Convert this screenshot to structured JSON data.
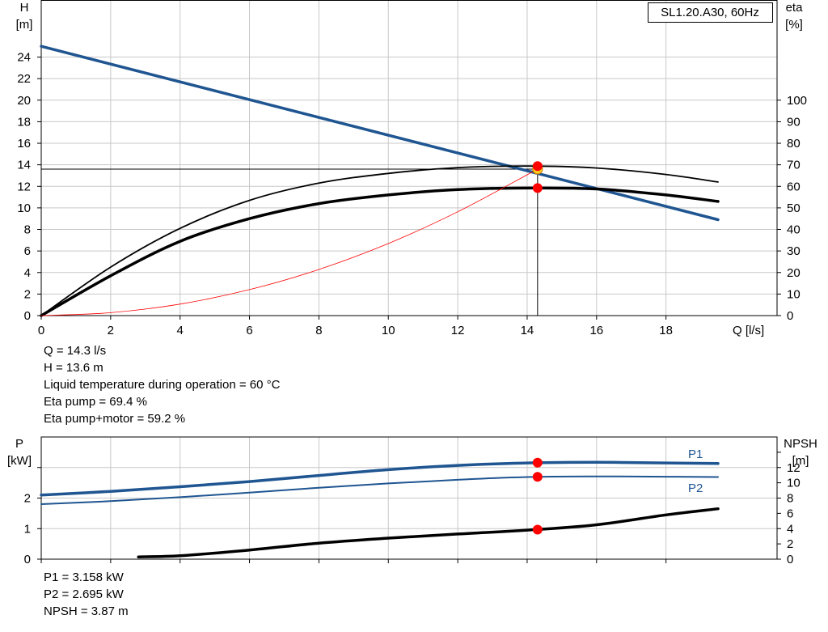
{
  "chart_data": [
    {
      "type": "line",
      "title": "SL1.20.A30, 60Hz",
      "xlabel": "Q [l/s]",
      "ylabel_left": [
        "H",
        "[m]"
      ],
      "ylabel_right": [
        "eta",
        "[%]"
      ],
      "xlim": [
        0,
        21.2
      ],
      "ylim_left": [
        0,
        29.3
      ],
      "ylim_right": [
        0,
        146.5
      ],
      "x_ticks": [
        0,
        2,
        4,
        6,
        8,
        10,
        12,
        14,
        16,
        18
      ],
      "y_ticks_left": [
        0,
        2,
        4,
        6,
        8,
        10,
        12,
        14,
        16,
        18,
        20,
        22,
        24
      ],
      "y_ticks_right": [
        0,
        10,
        20,
        30,
        40,
        50,
        60,
        70,
        80,
        90,
        100
      ],
      "grid": true,
      "series": [
        {
          "axis": "left",
          "color": "#1f5591",
          "width": 3.5,
          "x": [
            0,
            19.5
          ],
          "values": [
            25.0,
            8.9
          ]
        },
        {
          "axis": "right",
          "color": "#000000",
          "width": 1.8,
          "x": [
            0,
            2,
            4,
            6,
            8,
            10,
            12,
            14,
            16,
            18,
            19.5
          ],
          "values": [
            0,
            22.5,
            40.5,
            53.5,
            61.5,
            66.0,
            68.7,
            69.4,
            68.5,
            65.5,
            62.0
          ]
        },
        {
          "axis": "right",
          "color": "#000000",
          "width": 3.5,
          "x": [
            0,
            2,
            4,
            6,
            8,
            10,
            12,
            14,
            16,
            18,
            19.5
          ],
          "values": [
            0,
            18.5,
            34.5,
            45.0,
            52.0,
            56.0,
            58.5,
            59.2,
            58.8,
            56.0,
            53.0
          ]
        },
        {
          "axis": "left",
          "color": "#ff0000",
          "width": 0.8,
          "x": [
            0,
            2,
            4,
            6,
            8,
            10,
            12,
            14.3
          ],
          "values": [
            0,
            0.27,
            1.07,
            2.41,
            4.28,
            6.69,
            9.64,
            13.6
          ]
        }
      ],
      "operating_point": {
        "x": 14.3,
        "h": 13.6,
        "eta_pump": 69.4,
        "eta_total": 59.2
      },
      "markers": [
        {
          "axis": "left",
          "x": 14.3,
          "y": 13.6,
          "color": "#ffd21f"
        },
        {
          "axis": "right",
          "x": 14.3,
          "y": 69.4,
          "color": "#ff0000"
        },
        {
          "axis": "right",
          "x": 14.3,
          "y": 59.2,
          "color": "#ff0000"
        }
      ]
    },
    {
      "type": "line",
      "xlim": [
        0,
        21.2
      ],
      "ylabel_left": [
        "P",
        "[kW]"
      ],
      "ylabel_right": [
        "NPSH",
        "[m]"
      ],
      "ylim_left": [
        0,
        4
      ],
      "ylim_right": [
        0,
        16
      ],
      "y_ticks_left": [
        0,
        1,
        2
      ],
      "y_ticks_right": [
        0,
        2,
        4,
        6,
        8,
        10,
        12
      ],
      "grid": true,
      "series": [
        {
          "name": "P1",
          "axis": "left",
          "color": "#1f5591",
          "width": 3.5,
          "x": [
            0,
            2,
            4,
            6,
            8,
            10,
            12,
            14,
            16,
            18,
            19.5
          ],
          "values": [
            2.1,
            2.22,
            2.37,
            2.54,
            2.74,
            2.93,
            3.07,
            3.15,
            3.17,
            3.15,
            3.13
          ]
        },
        {
          "name": "P2",
          "axis": "left",
          "color": "#1f5591",
          "width": 2,
          "x": [
            0,
            2,
            4,
            6,
            8,
            10,
            12,
            14,
            16,
            18,
            19.5
          ],
          "values": [
            1.8,
            1.9,
            2.03,
            2.18,
            2.34,
            2.48,
            2.6,
            2.69,
            2.71,
            2.7,
            2.69
          ]
        },
        {
          "axis": "right",
          "color": "#000000",
          "width": 3.5,
          "x": [
            2.8,
            4,
            6,
            8,
            10,
            12,
            14,
            16,
            18,
            19.5
          ],
          "values": [
            0.3,
            0.45,
            1.2,
            2.1,
            2.75,
            3.3,
            3.8,
            4.5,
            5.8,
            6.6
          ]
        }
      ],
      "markers": [
        {
          "axis": "left",
          "x": 14.3,
          "y": 3.158,
          "color": "#ff0000"
        },
        {
          "axis": "left",
          "x": 14.3,
          "y": 2.695,
          "color": "#ff0000"
        },
        {
          "axis": "right",
          "x": 14.3,
          "y": 3.87,
          "color": "#ff0000"
        }
      ]
    }
  ],
  "info_top": [
    "Q = 14.3 l/s",
    "H = 13.6 m",
    "Liquid temperature during operation = 60 °C",
    "Eta pump = 69.4 %",
    "Eta pump+motor = 59.2 %"
  ],
  "info_bottom": [
    "P1 = 3.158 kW",
    "P2 = 2.695 kW",
    "NPSH = 3.87 m"
  ]
}
